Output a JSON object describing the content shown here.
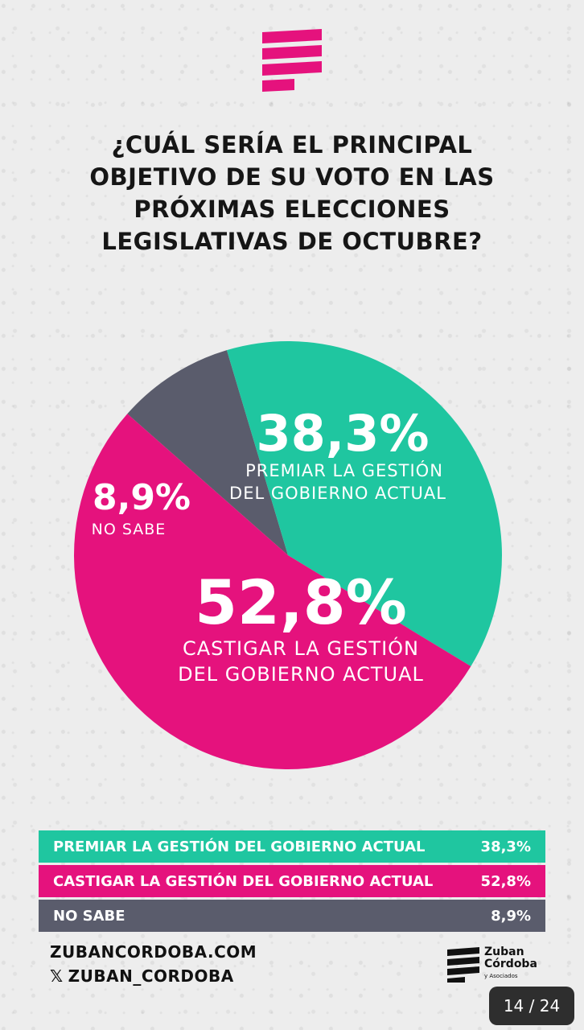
{
  "title_lines": [
    "¿CUÁL SERÍA EL PRINCIPAL",
    "OBJETIVO DE SU VOTO EN LAS",
    "PRÓXIMAS ELECCIONES",
    "LEGISLATIVAS DE OCTUBRE?"
  ],
  "colors": {
    "premiar": "#1fc6a0",
    "castigar": "#e5127d",
    "nosabe": "#5a5c6c",
    "brand": "#e5127d"
  },
  "chart_data": {
    "type": "pie",
    "title": "¿CUÁL SERÍA EL PRINCIPAL OBJETIVO DE SU VOTO EN LAS PRÓXIMAS ELECCIONES LEGISLATIVAS DE OCTUBRE?",
    "slices": [
      {
        "label": "PREMIAR LA GESTIÓN DEL GOBIERNO ACTUAL",
        "pie_label": [
          "PREMIAR LA GESTIÓN",
          "DEL GOBIERNO ACTUAL"
        ],
        "value": 38.3,
        "display": "38,3%",
        "color": "#1fc6a0"
      },
      {
        "label": "CASTIGAR LA GESTIÓN DEL GOBIERNO ACTUAL",
        "pie_label": [
          "CASTIGAR LA GESTIÓN",
          "DEL GOBIERNO ACTUAL"
        ],
        "value": 52.8,
        "display": "52,8%",
        "color": "#e5127d"
      },
      {
        "label": "NO SABE",
        "pie_label": [
          "NO SABE"
        ],
        "value": 8.9,
        "display": "8,9%",
        "color": "#5a5c6c"
      }
    ]
  },
  "legend": [
    {
      "label": "PREMIAR LA GESTIÓN DEL GOBIERNO ACTUAL",
      "value": "38,3%"
    },
    {
      "label": "CASTIGAR  LA GESTIÓN DEL GOBIERNO ACTUAL",
      "value": "52,8%"
    },
    {
      "label": "NO SABE",
      "value": "8,9%"
    }
  ],
  "footer": {
    "website": "ZUBANCORDOBA.COM",
    "x_glyph": "𝕏",
    "handle": "ZUBAN_CORDOBA"
  },
  "brand": {
    "line1": "Zuban",
    "line2": "Córdoba",
    "line3": "y Asociados"
  },
  "page_indicator": "14 / 24"
}
